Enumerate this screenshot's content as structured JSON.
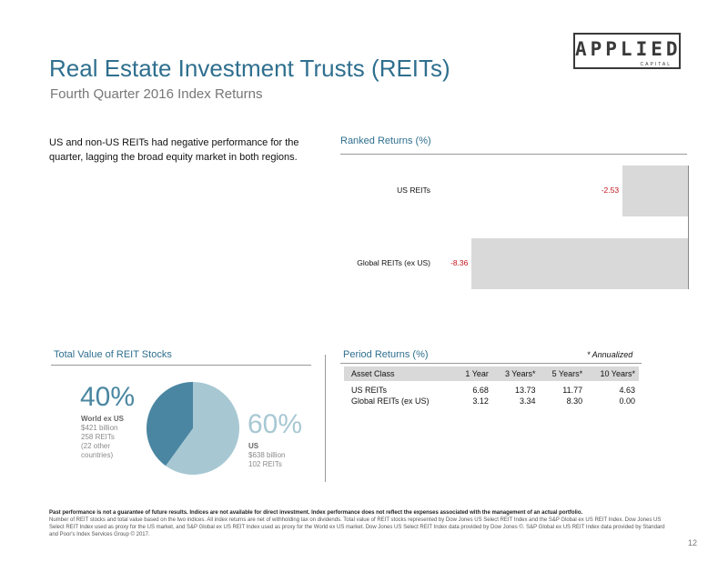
{
  "logo": {
    "main": "APPLIED",
    "sub": "CAPITAL"
  },
  "header": {
    "title": "Real Estate Investment Trusts (REITs)",
    "subtitle": "Fourth Quarter 2016 Index Returns"
  },
  "intro": "US and non-US REITs had negative performance for the quarter, lagging the broad equity market in both regions.",
  "ranked": {
    "label": "Ranked Returns (%)"
  },
  "pie_section": {
    "label": "Total Value of REIT Stocks",
    "world": {
      "pct": "40%",
      "name": "World ex US",
      "lines": [
        "$421 billion",
        "258 REITs",
        "(22 other",
        "countries)"
      ]
    },
    "us": {
      "pct": "60%",
      "name": "US",
      "lines": [
        "$638 billion",
        "102 REITs"
      ]
    }
  },
  "period": {
    "label": "Period Returns (%)",
    "annot": "* Annualized",
    "headers": [
      "Asset Class",
      "1 Year",
      "3 Years*",
      "5 Years*",
      "10 Years*"
    ],
    "rows": [
      [
        "US REITs",
        "6.68",
        "13.73",
        "11.77",
        "4.63"
      ],
      [
        "Global REITs (ex US)",
        "3.12",
        "3.34",
        "8.30",
        "0.00"
      ]
    ]
  },
  "disclaimer": {
    "bold": "Past performance is not a guarantee of future results. Indices are not available for direct investment. Index performance does not reflect the expenses associated with the management of an actual portfolio.",
    "text": "Number of REIT stocks and total value based on the two indices. All index returns are net of withholding tax on dividends. Total value of REIT stocks represented by Dow Jones US Select REIT Index and the S&P Global ex US REIT Index. Dow Jones US Select REIT Index used as proxy for the US market, and S&P Global ex US REIT Index used as proxy for the World ex US market. Dow Jones US Select REIT Index data provided by Dow Jones ©. S&P Global ex US REIT Index data provided by Standard and Poor's Index Services Group © 2017."
  },
  "page_number": "12",
  "colors": {
    "accent": "#2f6f8f",
    "negative": "#c0141c",
    "bar": "#d9d9d9",
    "pie_world": "#4a86a1",
    "pie_us": "#a7c8d3"
  },
  "chart_data": [
    {
      "type": "bar",
      "orientation": "horizontal",
      "title": "Ranked Returns (%)",
      "categories": [
        "US REITs",
        "Global REITs (ex US)"
      ],
      "values": [
        -2.53,
        -8.36
      ],
      "value_labels": [
        "-2.53",
        "-8.36"
      ]
    },
    {
      "type": "pie",
      "title": "Total Value of REIT Stocks",
      "labels": [
        "World ex US",
        "US"
      ],
      "values": [
        40,
        60
      ],
      "colors": [
        "#4a86a1",
        "#a7c8d3"
      ]
    }
  ]
}
